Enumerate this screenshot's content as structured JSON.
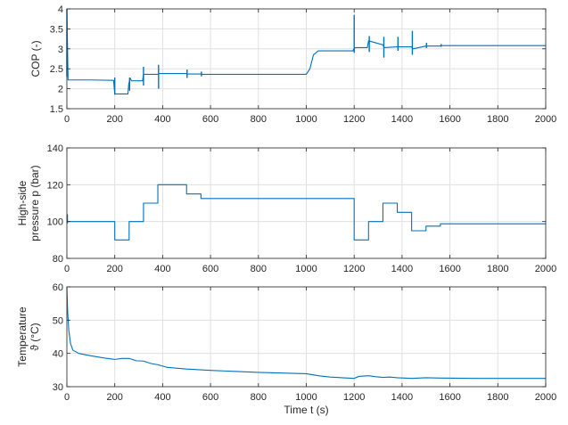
{
  "chart_data": [
    {
      "type": "line",
      "title": "",
      "xlabel": "",
      "ylabel": [
        "COP (-)"
      ],
      "xlim": [
        0,
        2000
      ],
      "ylim": [
        1.5,
        4
      ],
      "xticks": [
        0,
        200,
        400,
        600,
        800,
        1000,
        1200,
        1400,
        1600,
        1800,
        2000
      ],
      "yticks": [
        1.5,
        2,
        2.5,
        3,
        3.5,
        4
      ],
      "grid": true,
      "series": [
        {
          "color": "#0072bd",
          "points": [
            [
              0,
              4.0
            ],
            [
              5,
              2.22
            ],
            [
              100,
              2.22
            ],
            [
              195,
              2.21
            ],
            [
              200,
              1.87
            ],
            [
              255,
              1.87
            ],
            [
              258,
              2.1
            ],
            [
              264,
              2.27
            ],
            [
              270,
              2.2
            ],
            [
              316,
              2.2
            ],
            [
              320,
              2.36
            ],
            [
              380,
              2.36
            ],
            [
              385,
              2.38
            ],
            [
              500,
              2.38
            ],
            [
              505,
              2.37
            ],
            [
              560,
              2.37
            ],
            [
              565,
              2.36
            ],
            [
              1000,
              2.36
            ],
            [
              1015,
              2.5
            ],
            [
              1030,
              2.85
            ],
            [
              1050,
              2.95
            ],
            [
              1195,
              2.95
            ],
            [
              1198,
              3.0
            ],
            [
              1205,
              3.03
            ],
            [
              1255,
              3.03
            ],
            [
              1260,
              3.2
            ],
            [
              1320,
              3.1
            ],
            [
              1325,
              3.03
            ],
            [
              1380,
              3.05
            ],
            [
              1440,
              3.05
            ],
            [
              1445,
              3.0
            ],
            [
              1500,
              3.07
            ],
            [
              1560,
              3.07
            ],
            [
              1565,
              3.08
            ],
            [
              2000,
              3.08
            ]
          ],
          "spikes": [
            [
              0,
              2.3,
              4.0
            ],
            [
              200,
              1.85,
              2.28
            ],
            [
              262,
              1.95,
              2.28
            ],
            [
              320,
              2.08,
              2.55
            ],
            [
              383,
              2.0,
              2.6
            ],
            [
              502,
              2.27,
              2.48
            ],
            [
              562,
              2.31,
              2.43
            ],
            [
              1200,
              2.9,
              3.85
            ],
            [
              1263,
              2.92,
              3.32
            ],
            [
              1324,
              2.78,
              3.3
            ],
            [
              1383,
              2.95,
              3.3
            ],
            [
              1443,
              2.85,
              3.45
            ],
            [
              1502,
              3.02,
              3.15
            ],
            [
              1563,
              3.05,
              3.12
            ]
          ]
        }
      ]
    },
    {
      "type": "line",
      "title": "",
      "xlabel": "",
      "ylabel": [
        "High-side",
        "pressure p (bar)"
      ],
      "xlim": [
        0,
        2000
      ],
      "ylim": [
        80,
        140
      ],
      "xticks": [
        0,
        200,
        400,
        600,
        800,
        1000,
        1200,
        1400,
        1600,
        1800,
        2000
      ],
      "yticks": [
        80,
        100,
        120,
        140
      ],
      "grid": true,
      "series": [
        {
          "color": "#0072bd",
          "points": [
            [
              0,
              103
            ],
            [
              3,
              100
            ],
            [
              200,
              100
            ],
            [
              200,
              90
            ],
            [
              260,
              90
            ],
            [
              260,
              100
            ],
            [
              320,
              100
            ],
            [
              320,
              110
            ],
            [
              380,
              110
            ],
            [
              380,
              120
            ],
            [
              500,
              120
            ],
            [
              500,
              115
            ],
            [
              560,
              115
            ],
            [
              560,
              112.5
            ],
            [
              1200,
              112.5
            ],
            [
              1200,
              90
            ],
            [
              1260,
              90
            ],
            [
              1260,
              100
            ],
            [
              1320,
              100
            ],
            [
              1320,
              110
            ],
            [
              1380,
              110
            ],
            [
              1380,
              105
            ],
            [
              1440,
              105
            ],
            [
              1440,
              95
            ],
            [
              1500,
              95
            ],
            [
              1500,
              97.5
            ],
            [
              1560,
              97.5
            ],
            [
              1560,
              98.8
            ],
            [
              2000,
              98.8
            ]
          ],
          "spikes": [
            [
              2,
              99,
              104
            ]
          ]
        }
      ]
    },
    {
      "type": "line",
      "title": "",
      "xlabel": "Time t (s)",
      "ylabel": [
        "Temperature",
        "ϑ (°C)"
      ],
      "xlim": [
        0,
        2000
      ],
      "ylim": [
        30,
        60
      ],
      "xticks": [
        0,
        200,
        400,
        600,
        800,
        1000,
        1200,
        1400,
        1600,
        1800,
        2000
      ],
      "yticks": [
        30,
        40,
        50,
        60
      ],
      "grid": true,
      "series": [
        {
          "color": "#0072bd",
          "points": [
            [
              0,
              60
            ],
            [
              3,
              53
            ],
            [
              8,
              47
            ],
            [
              15,
              43
            ],
            [
              25,
              41
            ],
            [
              50,
              40
            ],
            [
              100,
              39.3
            ],
            [
              150,
              38.7
            ],
            [
              200,
              38.2
            ],
            [
              230,
              38.5
            ],
            [
              260,
              38.5
            ],
            [
              290,
              37.8
            ],
            [
              320,
              37.7
            ],
            [
              350,
              37.0
            ],
            [
              380,
              36.6
            ],
            [
              420,
              35.8
            ],
            [
              500,
              35.3
            ],
            [
              600,
              34.9
            ],
            [
              700,
              34.6
            ],
            [
              800,
              34.3
            ],
            [
              900,
              34.1
            ],
            [
              1000,
              33.9
            ],
            [
              1050,
              33.3
            ],
            [
              1100,
              32.9
            ],
            [
              1200,
              32.5
            ],
            [
              1220,
              33.1
            ],
            [
              1260,
              33.3
            ],
            [
              1290,
              33.0
            ],
            [
              1320,
              32.8
            ],
            [
              1350,
              32.9
            ],
            [
              1380,
              32.7
            ],
            [
              1440,
              32.5
            ],
            [
              1500,
              32.7
            ],
            [
              1560,
              32.6
            ],
            [
              1700,
              32.5
            ],
            [
              2000,
              32.5
            ]
          ],
          "spikes": []
        }
      ]
    }
  ]
}
